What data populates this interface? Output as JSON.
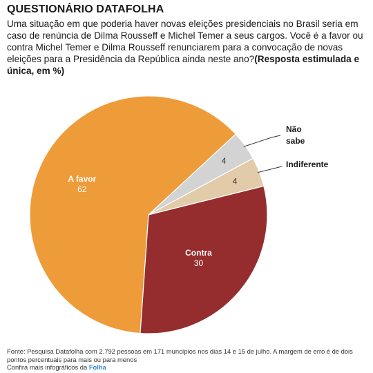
{
  "header": {
    "title": "QUESTIONÁRIO DATAFOLHA",
    "question": "Uma situação em que poderia haver novas eleições presidenciais no Brasil seria em caso de renúncia de Dilma Rousseff e Michel Temer a seus cargos. Você é a favor ou contra Michel Temer e Dilma Rousseff renunciarem para a convocação de novas eleições para a Presidência da República ainda neste ano?",
    "question_note": "(Resposta estimulada e única, em %)"
  },
  "chart_data": {
    "type": "pie",
    "unit": "%",
    "slices": [
      {
        "label": "A favor",
        "value": 62,
        "color": "#ee9b3a",
        "label_position": "inside"
      },
      {
        "label": "Não sabe",
        "value": 4,
        "color": "#d3d3d3",
        "label_position": "outside"
      },
      {
        "label": "Indiferente",
        "value": 4,
        "color": "#e2cba8",
        "label_position": "outside"
      },
      {
        "label": "Contra",
        "value": 30,
        "color": "#952d2e",
        "label_position": "inside"
      }
    ]
  },
  "footer": {
    "source": "Fonte: Pesquisa Datafolha com 2.792 pessoas em 171 muncípios nos dias 14 e 15 de julho. A margem de erro é de dois pontos percentuais para mais ou para menos",
    "more_prefix": "Confira mais infográficos da",
    "more_link": "Folha"
  }
}
